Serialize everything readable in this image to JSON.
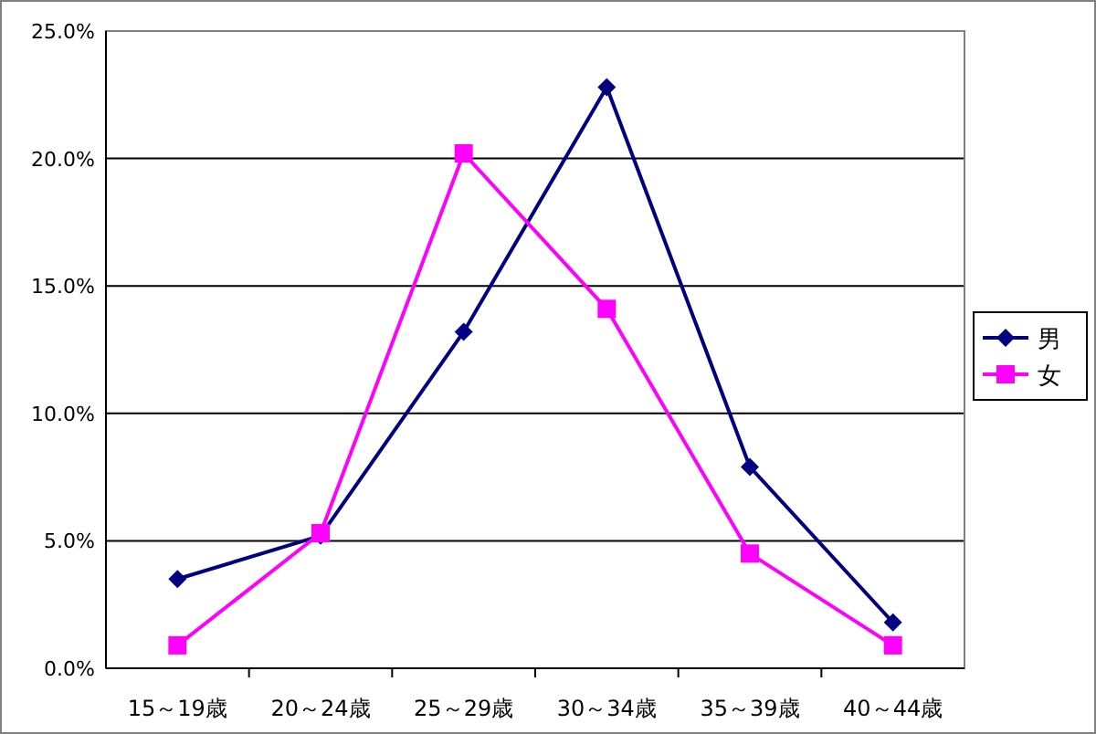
{
  "chart_data": {
    "type": "line",
    "categories": [
      "15～19歳",
      "20～24歳",
      "25～29歳",
      "30～34歳",
      "35～39歳",
      "40～44歳"
    ],
    "series": [
      {
        "name": "男",
        "color": "#000080",
        "marker": "diamond",
        "values": [
          3.5,
          5.2,
          13.2,
          22.8,
          7.9,
          1.8
        ]
      },
      {
        "name": "女",
        "color": "#ff00ff",
        "marker": "square",
        "values": [
          0.9,
          5.3,
          20.2,
          14.1,
          4.5,
          0.9
        ]
      }
    ],
    "ylim": [
      0,
      25
    ],
    "yticks": [
      {
        "value": 0,
        "label": "0.0%"
      },
      {
        "value": 5,
        "label": "5.0%"
      },
      {
        "value": 10,
        "label": "10.0%"
      },
      {
        "value": 15,
        "label": "15.0%"
      },
      {
        "value": 20,
        "label": "20.0%"
      },
      {
        "value": 25,
        "label": "25.0%"
      }
    ],
    "grid": "y",
    "legend": "right",
    "line_style": "solid"
  }
}
